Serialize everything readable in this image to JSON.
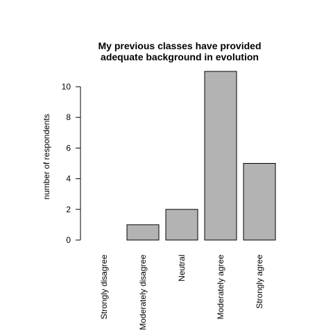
{
  "chart_data": {
    "type": "bar",
    "title": "My previous classes have provided\nadequate background in evolution",
    "title_lines": [
      "My previous classes have provided",
      "adequate background in evolution"
    ],
    "xlabel": "",
    "ylabel": "number of respondents",
    "categories": [
      "Strongly disagree",
      "Moderately disagree",
      "Neutral",
      "Moderately agree",
      "Strongly agree"
    ],
    "values": [
      0,
      1,
      2,
      11,
      5
    ],
    "ylim": [
      0,
      11
    ],
    "yticks": [
      0,
      2,
      4,
      6,
      8,
      10
    ],
    "ytick_labels": [
      "0",
      "2",
      "4",
      "6",
      "8",
      "10"
    ],
    "grid": false,
    "legend": "none",
    "bar_color": "#b3b3b3",
    "edge_color": "#000000"
  }
}
